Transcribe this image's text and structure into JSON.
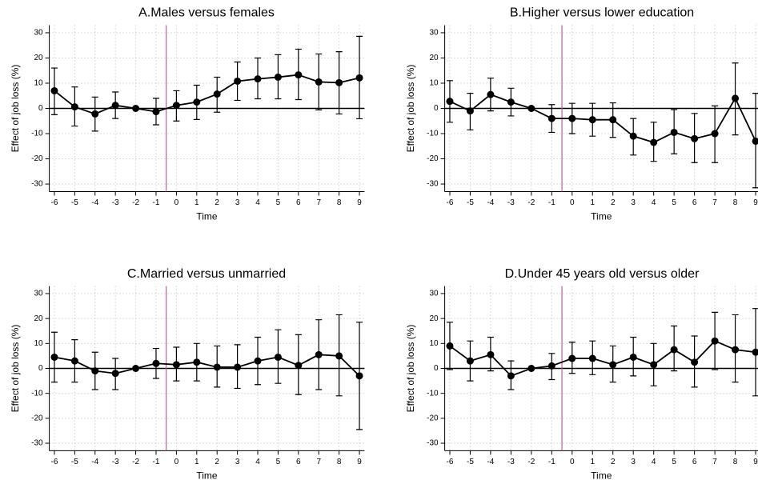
{
  "chart_data": [
    {
      "type": "errorbar",
      "title": "A.Males versus females",
      "xlabel": "Time",
      "ylabel": "Effect of job loss (%)",
      "x": [
        -6,
        -5,
        -4,
        -3,
        -2,
        -1,
        0,
        1,
        2,
        3,
        4,
        5,
        6,
        7,
        8,
        9
      ],
      "values": [
        7.0,
        0.6,
        -2.2,
        1.2,
        0,
        -1.3,
        1.2,
        2.5,
        5.7,
        10.8,
        11.7,
        12.4,
        13.3,
        10.5,
        10.2,
        12.1
      ],
      "ci_low": [
        -2.5,
        -7,
        -9,
        -4,
        null,
        -6.5,
        -5,
        -4.4,
        -1.5,
        3.2,
        3.8,
        3.8,
        3.5,
        -0.6,
        -2.2,
        -4.1
      ],
      "ci_high": [
        16,
        8.5,
        4.5,
        6.5,
        null,
        4,
        7,
        9.2,
        12.4,
        18.4,
        20,
        21.3,
        23.5,
        21.6,
        22.5,
        28.6
      ],
      "xlim": [
        -6.25,
        9.25
      ],
      "ylim": [
        -33,
        33
      ],
      "xticks": [
        -6,
        -5,
        -4,
        -3,
        -2,
        -1,
        0,
        1,
        2,
        3,
        4,
        5,
        6,
        7,
        8,
        9
      ],
      "yticks": [
        -30,
        -20,
        -10,
        0,
        10,
        20,
        30
      ],
      "vline": -0.5,
      "hline": 0,
      "color": "#000000",
      "vline_color": "#c0609a",
      "grid": true
    },
    {
      "type": "errorbar",
      "title": "B.Higher versus lower education",
      "xlabel": "Time",
      "ylabel": "Effect of job loss (%)",
      "x": [
        -6,
        -5,
        -4,
        -3,
        -2,
        -1,
        0,
        1,
        2,
        3,
        4,
        5,
        6,
        7,
        8,
        9
      ],
      "values": [
        2.8,
        -1,
        5.5,
        2.5,
        0,
        -4,
        -4,
        -4.5,
        -4.5,
        -11,
        -13.5,
        -9.5,
        -12,
        -10,
        4,
        -13
      ],
      "ci_low": [
        -5.5,
        -8.5,
        -1,
        -3,
        null,
        -9.5,
        -10,
        -11,
        -11.5,
        -18.5,
        -21,
        -18,
        -21.5,
        -21.5,
        -10.5,
        -31.5
      ],
      "ci_high": [
        11,
        6,
        12,
        8,
        null,
        1.5,
        2,
        2,
        2.2,
        -4,
        -5.5,
        -0.5,
        -2,
        1,
        18,
        6
      ],
      "xlim": [
        -6.25,
        9.25
      ],
      "ylim": [
        -33,
        33
      ],
      "xticks": [
        -6,
        -5,
        -4,
        -3,
        -2,
        -1,
        0,
        1,
        2,
        3,
        4,
        5,
        6,
        7,
        8,
        9
      ],
      "yticks": [
        -30,
        -20,
        -10,
        0,
        10,
        20,
        30
      ],
      "vline": -0.5,
      "hline": 0,
      "color": "#000000",
      "vline_color": "#c0609a",
      "grid": true
    },
    {
      "type": "errorbar",
      "title": "C.Married versus unmarried",
      "xlabel": "Time",
      "ylabel": "Effect of job loss (%)",
      "x": [
        -6,
        -5,
        -4,
        -3,
        -2,
        -1,
        0,
        1,
        2,
        3,
        4,
        5,
        6,
        7,
        8,
        9
      ],
      "values": [
        4.5,
        3,
        -1,
        -2,
        0,
        2,
        1.5,
        2.5,
        0.5,
        0.5,
        3,
        4.5,
        1.2,
        5.5,
        5,
        -3
      ],
      "ci_low": [
        -5.5,
        -5.5,
        -8.5,
        -8.5,
        null,
        -4,
        -5,
        -5,
        -7.5,
        -8,
        -6.5,
        -6,
        -10.5,
        -8.5,
        -11,
        -24.5
      ],
      "ci_high": [
        14.5,
        11.5,
        6.5,
        4,
        null,
        8,
        8.5,
        10,
        9,
        9.5,
        12.5,
        15.5,
        13.5,
        19.5,
        21.5,
        18.5
      ],
      "xlim": [
        -6.25,
        9.25
      ],
      "ylim": [
        -33,
        33
      ],
      "xticks": [
        -6,
        -5,
        -4,
        -3,
        -2,
        -1,
        0,
        1,
        2,
        3,
        4,
        5,
        6,
        7,
        8,
        9
      ],
      "yticks": [
        -30,
        -20,
        -10,
        0,
        10,
        20,
        30
      ],
      "vline": -0.5,
      "hline": 0,
      "color": "#000000",
      "vline_color": "#c0609a",
      "grid": true
    },
    {
      "type": "errorbar",
      "title": "D.Under 45 years old versus older",
      "xlabel": "Time",
      "ylabel": "Effect of job loss (%)",
      "x": [
        -6,
        -5,
        -4,
        -3,
        -2,
        -1,
        0,
        1,
        2,
        3,
        4,
        5,
        6,
        7,
        8,
        9
      ],
      "values": [
        9,
        3,
        5.5,
        -3,
        0,
        1,
        4,
        4,
        1.5,
        4.5,
        1.5,
        7.5,
        2.5,
        11,
        7.5,
        6.5
      ],
      "ci_low": [
        -0.5,
        -5,
        -1,
        -8.5,
        null,
        -4.5,
        -2,
        -2.5,
        -5.5,
        -3,
        -7,
        -1,
        -7.5,
        -0.5,
        -5.5,
        -11
      ],
      "ci_high": [
        18.5,
        11,
        12.5,
        3,
        null,
        6,
        10.5,
        11,
        9,
        12.5,
        10,
        17,
        13,
        22.5,
        21.5,
        24
      ],
      "xlim": [
        -6.25,
        9.25
      ],
      "ylim": [
        -33,
        33
      ],
      "xticks": [
        -6,
        -5,
        -4,
        -3,
        -2,
        -1,
        0,
        1,
        2,
        3,
        4,
        5,
        6,
        7,
        8,
        9
      ],
      "yticks": [
        -30,
        -20,
        -10,
        0,
        10,
        20,
        30
      ],
      "vline": -0.5,
      "hline": 0,
      "color": "#000000",
      "vline_color": "#c0609a",
      "grid": true
    }
  ]
}
